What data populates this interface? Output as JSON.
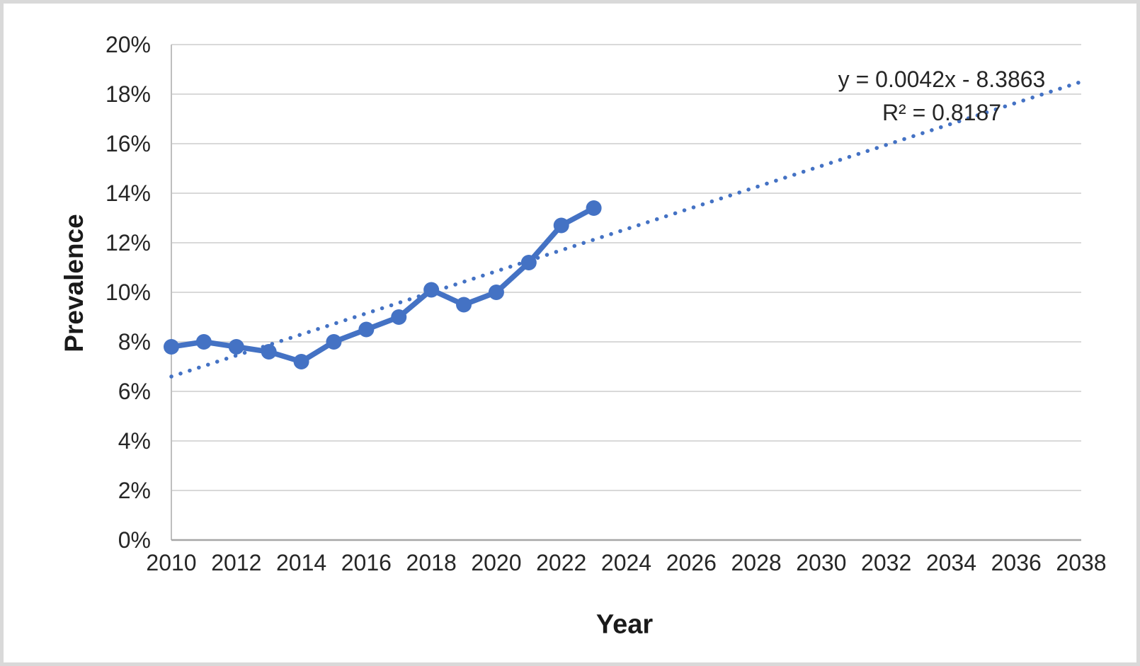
{
  "chart_data": {
    "type": "line",
    "title": "",
    "xlabel": "Year",
    "ylabel": "Prevalence",
    "x": [
      2010,
      2011,
      2012,
      2013,
      2014,
      2015,
      2016,
      2017,
      2018,
      2019,
      2020,
      2021,
      2022,
      2023
    ],
    "series": [
      {
        "name": "Prevalence",
        "color": "#4472C4",
        "marker": "circle",
        "values": [
          7.8,
          8.0,
          7.8,
          7.6,
          7.2,
          8.0,
          8.5,
          9.0,
          10.1,
          9.5,
          10.0,
          11.2,
          12.7,
          13.4
        ]
      }
    ],
    "trendline": {
      "equation": "y = 0.0042x - 8.3863",
      "r2": "R² = 0.8187",
      "color": "#4472C4",
      "style": "dotted",
      "x_start": 2010,
      "y_start": 6.6,
      "x_end": 2038,
      "y_end": 18.5
    },
    "xlim": [
      2010,
      2038
    ],
    "ylim": [
      0,
      20
    ],
    "x_ticks": [
      2010,
      2012,
      2014,
      2016,
      2018,
      2020,
      2022,
      2024,
      2026,
      2028,
      2030,
      2032,
      2034,
      2036,
      2038
    ],
    "y_ticks": [
      {
        "value": 0,
        "label": "0%"
      },
      {
        "value": 2,
        "label": "2%"
      },
      {
        "value": 4,
        "label": "4%"
      },
      {
        "value": 6,
        "label": "6%"
      },
      {
        "value": 8,
        "label": "8%"
      },
      {
        "value": 10,
        "label": "10%"
      },
      {
        "value": 12,
        "label": "12%"
      },
      {
        "value": 14,
        "label": "14%"
      },
      {
        "value": 16,
        "label": "16%"
      },
      {
        "value": 18,
        "label": "18%"
      },
      {
        "value": 20,
        "label": "20%"
      }
    ],
    "grid": "horizontal",
    "legend": "none",
    "colors": {
      "gridline": "#D9D9D9",
      "axis_line": "#A6A6A6",
      "y_axis_line": "#BFBFBF",
      "tick_text": "#262626"
    }
  }
}
